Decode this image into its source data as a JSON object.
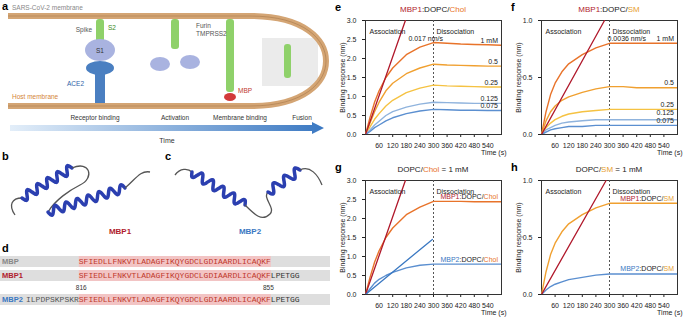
{
  "panels": {
    "a": {
      "panel": "a",
      "virus_membrane": "SARS-CoV-2 membrane",
      "host_membrane": "Host membrane",
      "spike": "Spike",
      "s1": "S1",
      "s2": "S2",
      "ace2": "ACE2",
      "proteases": [
        "Furin",
        "TMPRSS2"
      ],
      "mbp": "MBP",
      "stages": [
        "Receptor binding",
        "Activation",
        "Membrane binding",
        "Fusion"
      ],
      "axis": "Time"
    },
    "b": {
      "panel": "b",
      "name": "MBP1"
    },
    "c": {
      "panel": "c",
      "name": "MBP2"
    },
    "d": {
      "panel": "d",
      "rows": [
        {
          "name": "MBP",
          "prefix": "",
          "core": "SFIEDLLFNKVTLADAGFIKQYGDCLGDIAARDLICAQKF",
          "suffix": ""
        },
        {
          "name": "MBP1",
          "prefix": "",
          "core": "SFIEDLLFNKVTLADAGFIKQYGDCLGDIAARDLICAQKF",
          "suffix": "LPETGG"
        },
        {
          "name": "MBP2",
          "prefix": "ILPDPSKPSKR",
          "core": "SFIEDLLFNKVTLADAGFIKQYGDCLGDIAARDLICAQKF",
          "suffix": "LPETGG"
        }
      ],
      "residue_numbers": [
        816,
        855
      ]
    }
  },
  "chart_data": [
    {
      "panel": "e",
      "type": "line",
      "title": "MBP1:DOPC/Chol",
      "x_label": "Time (s)",
      "y_label": "Binding response (nm)",
      "x": [
        0,
        20,
        40,
        60,
        90,
        120,
        180,
        240,
        300,
        360,
        420,
        480,
        540,
        600
      ],
      "series": [
        {
          "name": "1 mM",
          "color": "#e8732a",
          "values": [
            0,
            0.45,
            0.85,
            1.15,
            1.5,
            1.75,
            2.1,
            2.3,
            2.42,
            2.4,
            2.38,
            2.37,
            2.36,
            2.35
          ]
        },
        {
          "name": "0.5",
          "color": "#f0a030",
          "values": [
            0,
            0.3,
            0.6,
            0.85,
            1.15,
            1.35,
            1.6,
            1.75,
            1.85,
            1.83,
            1.82,
            1.81,
            1.8,
            1.8
          ]
        },
        {
          "name": "0.25",
          "color": "#f5c242",
          "values": [
            0,
            0.2,
            0.4,
            0.55,
            0.75,
            0.9,
            1.1,
            1.22,
            1.3,
            1.28,
            1.27,
            1.26,
            1.25,
            1.25
          ]
        },
        {
          "name": "0.125",
          "color": "#8fb3dd",
          "values": [
            0,
            0.12,
            0.25,
            0.35,
            0.5,
            0.6,
            0.72,
            0.8,
            0.85,
            0.84,
            0.83,
            0.82,
            0.82,
            0.82
          ]
        },
        {
          "name": "0.075",
          "color": "#5b8fd0",
          "values": [
            0,
            0.08,
            0.18,
            0.25,
            0.36,
            0.44,
            0.55,
            0.62,
            0.66,
            0.65,
            0.64,
            0.64,
            0.63,
            0.63
          ]
        }
      ],
      "slopes": [
        {
          "label": "0.017 nm/s",
          "color": "#b0182b",
          "x": [
            0,
            176
          ],
          "values": [
            0,
            3
          ]
        }
      ],
      "dissociation_start": 300,
      "annotations": [
        "Association",
        "Dissociation"
      ],
      "xlim": [
        0,
        600
      ],
      "xticks": [
        60,
        120,
        180,
        240,
        300,
        360,
        420,
        480,
        540
      ],
      "ylim": [
        0,
        3
      ],
      "yticks": [
        {
          "value": 0,
          "label": "0.0"
        },
        0.5,
        {
          "value": 1,
          "label": "1.0"
        },
        1.5,
        {
          "value": 2,
          "label": "2.0"
        },
        2.5,
        {
          "value": 3,
          "label": "3.0"
        }
      ]
    },
    {
      "panel": "f",
      "type": "line",
      "title": "MBP1:DOPC/SM",
      "x_label": "Time (s)",
      "y_label": "Binding response (nm)",
      "x": [
        0,
        20,
        40,
        60,
        90,
        120,
        180,
        240,
        300,
        360,
        420,
        480,
        540,
        600
      ],
      "series": [
        {
          "name": "1 mM",
          "color": "#e8732a",
          "values": [
            0,
            0.2,
            0.35,
            0.45,
            0.55,
            0.62,
            0.7,
            0.76,
            0.8,
            0.8,
            0.8,
            0.8,
            0.8,
            0.8
          ]
        },
        {
          "name": "0.5",
          "color": "#f0a030",
          "values": [
            0,
            0.12,
            0.2,
            0.25,
            0.3,
            0.33,
            0.37,
            0.4,
            0.42,
            0.42,
            0.41,
            0.41,
            0.41,
            0.41
          ]
        },
        {
          "name": "0.25",
          "color": "#f5c242",
          "values": [
            0,
            0.06,
            0.1,
            0.13,
            0.16,
            0.18,
            0.2,
            0.21,
            0.22,
            0.22,
            0.22,
            0.22,
            0.22,
            0.22
          ]
        },
        {
          "name": "0.125",
          "color": "#8fb3dd",
          "values": [
            0,
            0.04,
            0.06,
            0.08,
            0.1,
            0.11,
            0.12,
            0.13,
            0.13,
            0.13,
            0.13,
            0.13,
            0.13,
            0.13
          ]
        },
        {
          "name": "0.075",
          "color": "#5b8fd0",
          "values": [
            0,
            0.02,
            0.04,
            0.05,
            0.06,
            0.07,
            0.07,
            0.08,
            0.08,
            0.08,
            0.08,
            0.08,
            0.08,
            0.08
          ]
        }
      ],
      "slopes": [
        {
          "label": "0.0036 nm/s",
          "color": "#b0182b",
          "x": [
            0,
            278
          ],
          "values": [
            0,
            1
          ]
        }
      ],
      "dissociation_start": 300,
      "annotations": [
        "Association",
        "Dissociation"
      ],
      "xlim": [
        0,
        600
      ],
      "xticks": [
        60,
        120,
        180,
        240,
        300,
        360,
        420,
        480,
        540
      ],
      "ylim": [
        0,
        1
      ],
      "yticks": [
        {
          "value": 0,
          "label": "0.0"
        },
        0.5,
        {
          "value": 1,
          "label": "1.0"
        }
      ]
    },
    {
      "panel": "g",
      "type": "line",
      "title": "DOPC/Chol = 1 mM",
      "x_label": "Time (s)",
      "y_label": "Binding response (nm)",
      "x": [
        0,
        20,
        40,
        60,
        90,
        120,
        180,
        240,
        300,
        360,
        420,
        480,
        540,
        600
      ],
      "series": [
        {
          "name": "MBP1:DOPC/Chol",
          "color": "#e8732a",
          "values": [
            0,
            0.45,
            0.85,
            1.15,
            1.5,
            1.75,
            2.1,
            2.3,
            2.45,
            2.45,
            2.45,
            2.44,
            2.44,
            2.44
          ]
        },
        {
          "name": "MBP2:DOPC/Chol",
          "color": "#5b8fd0",
          "values": [
            0,
            0.15,
            0.3,
            0.4,
            0.5,
            0.58,
            0.7,
            0.77,
            0.8,
            0.8,
            0.8,
            0.8,
            0.8,
            0.8
          ]
        }
      ],
      "slopes": [
        {
          "color": "#b0182b",
          "x": [
            0,
            176
          ],
          "values": [
            0,
            3
          ]
        },
        {
          "color": "#3a78c2",
          "x": [
            0,
            295
          ],
          "values": [
            0,
            1.45
          ]
        }
      ],
      "dissociation_start": 300,
      "annotations": [
        "Association",
        "Dissociation"
      ],
      "xlim": [
        0,
        600
      ],
      "xticks": [
        60,
        120,
        180,
        240,
        300,
        360,
        420,
        480,
        540
      ],
      "ylim": [
        0,
        3
      ],
      "yticks": [
        {
          "value": 0,
          "label": "0.0"
        },
        0.5,
        {
          "value": 1,
          "label": "1.0"
        },
        1.5,
        {
          "value": 2,
          "label": "2.0"
        },
        2.5,
        {
          "value": 3,
          "label": "3.0"
        }
      ]
    },
    {
      "panel": "h",
      "type": "line",
      "title": "DOPC/SM = 1 mM",
      "x_label": "Time (s)",
      "y_label": "Binding response (nm)",
      "x": [
        0,
        20,
        40,
        60,
        90,
        120,
        180,
        240,
        300,
        360,
        420,
        480,
        540,
        600
      ],
      "series": [
        {
          "name": "MBP1:DOPC/SM",
          "color": "#f0a030",
          "values": [
            0,
            0.2,
            0.35,
            0.45,
            0.55,
            0.62,
            0.7,
            0.76,
            0.8,
            0.8,
            0.8,
            0.8,
            0.8,
            0.8
          ]
        },
        {
          "name": "MBP2:DOPC/SM",
          "color": "#5b8fd0",
          "values": [
            0,
            0.04,
            0.07,
            0.09,
            0.11,
            0.13,
            0.15,
            0.17,
            0.18,
            0.18,
            0.18,
            0.18,
            0.18,
            0.18
          ]
        }
      ],
      "slopes": [
        {
          "color": "#b0182b",
          "x": [
            0,
            285
          ],
          "values": [
            0,
            1
          ]
        }
      ],
      "dissociation_start": 300,
      "annotations": [
        "Association",
        "Dissociation"
      ],
      "xlim": [
        0,
        600
      ],
      "xticks": [
        60,
        120,
        180,
        240,
        300,
        360,
        420,
        480,
        540
      ],
      "ylim": [
        0,
        1
      ],
      "yticks": [
        {
          "value": 0,
          "label": "0.0"
        },
        0.5,
        {
          "value": 1,
          "label": "1.0"
        }
      ]
    }
  ]
}
